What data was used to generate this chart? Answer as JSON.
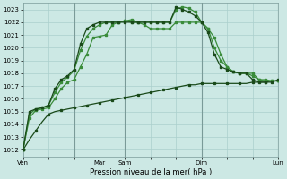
{
  "bg_color": "#cce8e4",
  "grid_color": "#aacfcc",
  "line_color_light": "#3a8c3a",
  "line_color_dark": "#1a4a1a",
  "ylabel_values": [
    1012,
    1013,
    1014,
    1015,
    1016,
    1017,
    1018,
    1019,
    1020,
    1021,
    1022,
    1023
  ],
  "xlabel": "Pression niveau de la mer( hPa )",
  "xlim": [
    0,
    240
  ],
  "ylim": [
    1011.5,
    1023.5
  ],
  "xtick_positions": [
    0,
    24,
    48,
    72,
    96,
    120,
    144,
    168,
    192,
    216,
    240
  ],
  "xtick_labels": [
    "Ven",
    "",
    "",
    "Mar",
    "Sam",
    "",
    "",
    "Dim",
    "",
    "",
    "Lun"
  ],
  "vlines": [
    48,
    96,
    168,
    240
  ],
  "series1_x": [
    0,
    6,
    12,
    18,
    24,
    30,
    36,
    42,
    48,
    54,
    60,
    66,
    72,
    78,
    84,
    90,
    96,
    102,
    108,
    114,
    120,
    126,
    132,
    138,
    144,
    150,
    156,
    162,
    168,
    174,
    180,
    186,
    192,
    198,
    204,
    210,
    216,
    222,
    228,
    234,
    240
  ],
  "series1_y": [
    1012.0,
    1012.8,
    1013.5,
    1014.2,
    1014.8,
    1015.0,
    1015.1,
    1015.2,
    1015.3,
    1015.4,
    1015.5,
    1015.6,
    1015.7,
    1015.8,
    1015.9,
    1016.0,
    1016.1,
    1016.2,
    1016.3,
    1016.4,
    1016.5,
    1016.6,
    1016.7,
    1016.8,
    1016.9,
    1017.0,
    1017.1,
    1017.1,
    1017.2,
    1017.2,
    1017.2,
    1017.2,
    1017.2,
    1017.2,
    1017.2,
    1017.2,
    1017.3,
    1017.3,
    1017.3,
    1017.4,
    1017.4
  ],
  "series2_x": [
    0,
    6,
    12,
    18,
    24,
    30,
    36,
    42,
    48,
    54,
    60,
    66,
    72,
    78,
    84,
    90,
    96,
    102,
    108,
    114,
    120,
    126,
    132,
    138,
    144,
    150,
    156,
    162,
    168,
    174,
    180,
    186,
    192,
    198,
    204,
    210,
    216,
    222,
    228,
    234,
    240
  ],
  "series2_y": [
    1012.0,
    1014.5,
    1015.1,
    1015.2,
    1015.3,
    1016.0,
    1016.8,
    1017.3,
    1017.5,
    1018.5,
    1019.5,
    1020.8,
    1020.9,
    1021.0,
    1021.8,
    1022.0,
    1022.1,
    1022.0,
    1022.0,
    1021.8,
    1021.5,
    1021.5,
    1021.5,
    1021.5,
    1022.0,
    1022.0,
    1022.0,
    1022.0,
    1022.0,
    1021.5,
    1020.8,
    1019.5,
    1018.5,
    1018.1,
    1018.0,
    1018.0,
    1018.0,
    1017.5,
    1017.5,
    1017.4,
    1017.4
  ],
  "series3_x": [
    0,
    6,
    12,
    18,
    24,
    30,
    36,
    42,
    48,
    54,
    60,
    66,
    72,
    78,
    84,
    90,
    96,
    102,
    108,
    114,
    120,
    126,
    132,
    138,
    144,
    150,
    156,
    162,
    168,
    174,
    180,
    186,
    192,
    198,
    204,
    210,
    216,
    222,
    228,
    234,
    240
  ],
  "series3_y": [
    1012.0,
    1014.8,
    1015.2,
    1015.3,
    1015.5,
    1016.5,
    1017.3,
    1017.7,
    1018.2,
    1019.8,
    1020.9,
    1021.5,
    1021.8,
    1022.0,
    1022.0,
    1022.0,
    1022.1,
    1022.2,
    1022.0,
    1022.0,
    1022.0,
    1022.0,
    1022.0,
    1022.0,
    1023.0,
    1023.2,
    1023.1,
    1022.8,
    1022.0,
    1021.5,
    1020.0,
    1019.0,
    1018.5,
    1018.1,
    1018.0,
    1018.0,
    1017.8,
    1017.5,
    1017.4,
    1017.4,
    1017.4
  ],
  "series4_x": [
    0,
    6,
    12,
    18,
    24,
    30,
    36,
    42,
    48,
    54,
    60,
    66,
    72,
    78,
    84,
    90,
    96,
    102,
    108,
    114,
    120,
    126,
    132,
    138,
    144,
    150,
    156,
    162,
    168,
    174,
    180,
    186,
    192,
    198,
    204,
    210,
    216,
    222,
    228,
    234,
    240
  ],
  "series4_y": [
    1012.0,
    1015.0,
    1015.2,
    1015.3,
    1015.5,
    1016.8,
    1017.5,
    1017.8,
    1018.3,
    1020.3,
    1021.5,
    1021.8,
    1022.0,
    1022.0,
    1022.0,
    1022.0,
    1022.0,
    1022.0,
    1022.0,
    1022.0,
    1022.0,
    1022.0,
    1022.0,
    1022.0,
    1023.2,
    1023.0,
    1022.8,
    1022.5,
    1022.0,
    1021.2,
    1019.5,
    1018.5,
    1018.3,
    1018.1,
    1018.0,
    1018.0,
    1017.5,
    1017.3,
    1017.3,
    1017.3,
    1017.5
  ]
}
